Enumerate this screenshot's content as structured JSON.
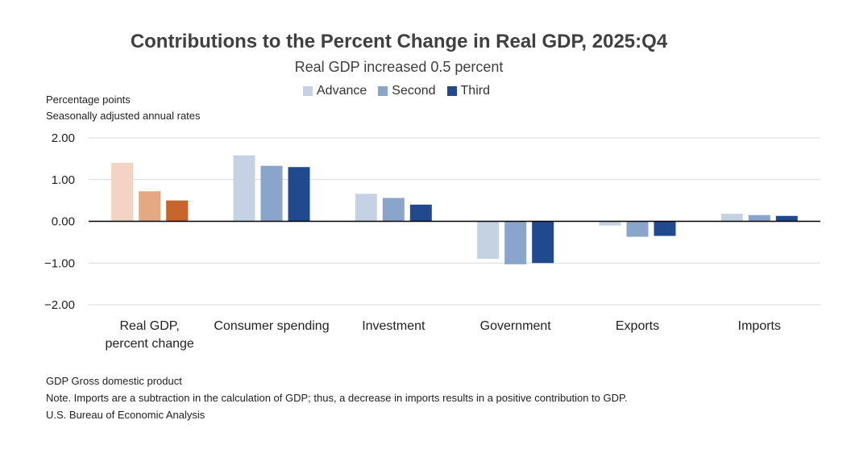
{
  "chart_data": {
    "type": "bar",
    "title": "Contributions to the Percent Change in Real GDP, 2025:Q4",
    "subtitle": "Real GDP increased 0.5 percent",
    "ylabel_lines": [
      "Percentage points",
      "Seasonally adjusted annual rates"
    ],
    "categories": [
      [
        "Real GDP,",
        "percent change"
      ],
      [
        "Consumer spending"
      ],
      [
        "Investment"
      ],
      [
        "Government"
      ],
      [
        "Exports"
      ],
      [
        "Imports"
      ]
    ],
    "series": [
      {
        "name": "Advance",
        "values": [
          1.4,
          1.58,
          0.66,
          -0.9,
          -0.1,
          0.18
        ]
      },
      {
        "name": "Second",
        "values": [
          0.72,
          1.33,
          0.56,
          -1.03,
          -0.37,
          0.15
        ]
      },
      {
        "name": "Third",
        "values": [
          0.5,
          1.3,
          0.4,
          -1.0,
          -0.35,
          0.13
        ]
      }
    ],
    "ylim": [
      -2.0,
      2.0
    ],
    "yticks": [
      2.0,
      1.0,
      0.0,
      -1.0,
      -2.0
    ],
    "ytick_labels": [
      "2.00",
      "1.00",
      "0.00",
      "−1.00",
      "−2.00"
    ],
    "grid": true,
    "legend_position": "top-center",
    "colors": {
      "series_default": [
        "#c4d2e4",
        "#8aa5cb",
        "#214a8e"
      ],
      "highlight_first_category": [
        "#f3d3c2",
        "#e2a982",
        "#c8642d"
      ],
      "gridline": "#d9d9d9",
      "zero_line": "#000000"
    }
  },
  "footnotes": [
    "GDP Gross domestic product",
    "Note. Imports are a subtraction in the calculation of GDP; thus, a decrease in imports results in a positive contribution to GDP.",
    "U.S. Bureau of Economic Analysis"
  ]
}
